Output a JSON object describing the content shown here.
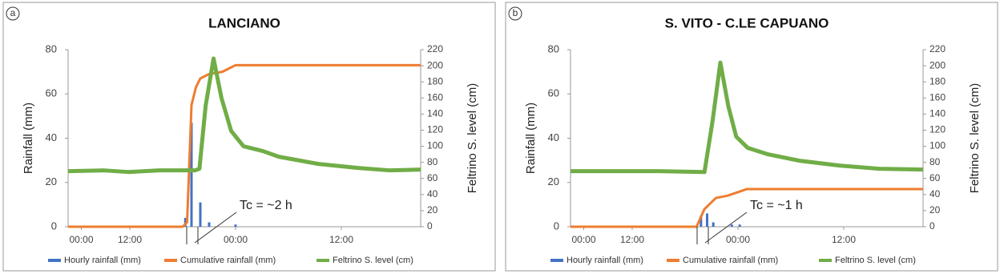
{
  "chart_data": [
    {
      "type": "combo",
      "panel_label": "a",
      "title": "LANCIANO",
      "ylabel": "Rainfall (mm)",
      "y2label": "Feltrino S. level (cm)",
      "annotation": "Tc = ~2 h",
      "xlim": [
        0,
        40
      ],
      "xticks": [
        {
          "value": 1.5,
          "label": "00:00"
        },
        {
          "value": 7,
          "label": "12:00"
        },
        {
          "value": 19,
          "label": "00:00"
        },
        {
          "value": 31,
          "label": "12:00"
        }
      ],
      "ylim": [
        0,
        80
      ],
      "yticks": [
        0,
        20,
        40,
        60,
        80
      ],
      "y2lim": [
        0,
        220
      ],
      "y2ticks": [
        0,
        20,
        40,
        60,
        80,
        100,
        120,
        140,
        160,
        180,
        200,
        220
      ],
      "series": [
        {
          "name": "Hourly rainfall (mm)",
          "kind": "bar",
          "color": "#4472c4",
          "x": [
            13.3,
            14,
            15,
            16,
            19
          ],
          "values": [
            4,
            47,
            11,
            2,
            1
          ]
        },
        {
          "name": "Cumulative rainfall (mm)",
          "kind": "line",
          "color": "#ed7d31",
          "x": [
            0,
            13,
            13.5,
            14,
            14.5,
            15,
            16,
            17.5,
            19,
            40
          ],
          "values": [
            0,
            0,
            2,
            55,
            63,
            67,
            69,
            70,
            73,
            73
          ]
        },
        {
          "name": "Feltrino S. level (cm)",
          "kind": "line",
          "axis": "y2",
          "color": "#70ad47",
          "x": [
            0,
            4.1,
            6.8,
            10.4,
            14.4,
            14.9,
            15.6,
            16.5,
            17.4,
            18.5,
            19.9,
            22.1,
            23.9,
            28.4,
            32.9,
            36.5,
            40
          ],
          "values": [
            69,
            70,
            68,
            70,
            70,
            72,
            150,
            209,
            160,
            119,
            100,
            94,
            87,
            78,
            73,
            70,
            71
          ]
        }
      ]
    },
    {
      "type": "combo",
      "panel_label": "b",
      "title": "S. VITO - C.LE CAPUANO",
      "ylabel": "Rainfall (mm)",
      "y2label": "Feltrino S. level (cm)",
      "annotation": "Tc = ~1 h",
      "xlim": [
        0,
        40
      ],
      "xticks": [
        {
          "value": 1.5,
          "label": "00:00"
        },
        {
          "value": 7,
          "label": "12:00"
        },
        {
          "value": 19,
          "label": "00:00"
        },
        {
          "value": 31,
          "label": "12:00"
        }
      ],
      "ylim": [
        0,
        80
      ],
      "yticks": [
        0,
        20,
        40,
        60,
        80
      ],
      "y2lim": [
        0,
        220
      ],
      "y2ticks": [
        0,
        20,
        40,
        60,
        80,
        100,
        120,
        140,
        160,
        180,
        200,
        220
      ],
      "series": [
        {
          "name": "Hourly rainfall (mm)",
          "kind": "bar",
          "color": "#4472c4",
          "x": [
            14.8,
            15.5,
            16.2,
            18.3,
            19.2
          ],
          "values": [
            5,
            6,
            2,
            1,
            1
          ]
        },
        {
          "name": "Cumulative rainfall (mm)",
          "kind": "line",
          "color": "#ed7d31",
          "x": [
            0,
            14.3,
            15.2,
            16.5,
            17.8,
            20,
            40
          ],
          "values": [
            0,
            0,
            8,
            13,
            14,
            17,
            17
          ]
        },
        {
          "name": "Feltrino S. level (cm)",
          "kind": "line",
          "axis": "y2",
          "color": "#70ad47",
          "x": [
            0,
            5,
            10,
            15.2,
            16.1,
            17,
            17.9,
            18.8,
            20.1,
            22.4,
            26,
            30.5,
            35,
            40
          ],
          "values": [
            69,
            69,
            69,
            68,
            130,
            204,
            150,
            112,
            98,
            90,
            82,
            76,
            72,
            71
          ]
        }
      ]
    }
  ]
}
